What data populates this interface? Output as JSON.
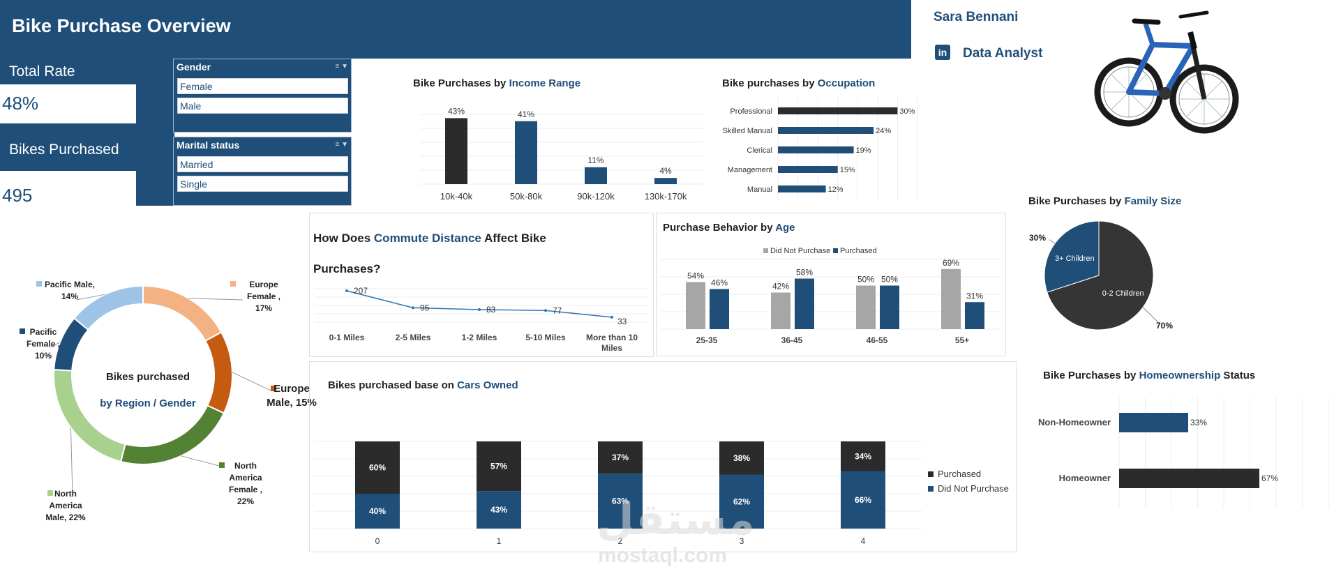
{
  "header": {
    "title": "Bike Purchase Overview"
  },
  "profile": {
    "name": "Sara Bennani",
    "role": "Data Analyst",
    "linkedin_glyph": "in"
  },
  "kpis": {
    "total_rate_label": "Total Rate",
    "total_rate_value": "48%",
    "bikes_label": "Bikes Purchased",
    "bikes_value": "495"
  },
  "slicers": {
    "gender": {
      "title": "Gender",
      "items": [
        "Female",
        "Male"
      ]
    },
    "marital": {
      "title": "Marital status",
      "items": [
        "Married",
        "Single"
      ]
    }
  },
  "watermark": {
    "arabic": "مستقل",
    "latin": "mostaql.com"
  },
  "charts": {
    "income": {
      "title_pre": "Bike Purchases by ",
      "title_hl": "Income Range"
    },
    "occupation": {
      "title_pre": "Bike purchases by ",
      "title_hl": "Occupation"
    },
    "family": {
      "title_pre": "Bike Purchases by ",
      "title_hl": "Family Size"
    },
    "region": {
      "center_line1": "Bikes purchased",
      "center_line2": "by Region / Gender"
    },
    "commute": {
      "title_pre": "How Does ",
      "title_hl": "Commute Distance",
      "title_post": " Affect Bike",
      "title_line2": "Purchases?"
    },
    "age": {
      "title_pre": "Purchase Behavior by ",
      "title_hl": "Age"
    },
    "cars": {
      "title_pre": "Bikes purchased base on ",
      "title_hl": "Cars Owned"
    },
    "home": {
      "title_pre": "Bike Purchases by ",
      "title_hl": "Homeownership",
      "title_post": " Status"
    }
  },
  "chart_data": [
    {
      "id": "income",
      "type": "bar",
      "title": "Bike Purchases by Income Range",
      "categories": [
        "10k-40k",
        "50k-80k",
        "90k-120k",
        "130k-170k"
      ],
      "values": [
        43,
        41,
        11,
        4
      ],
      "labels": [
        "43%",
        "41%",
        "11%",
        "4%"
      ],
      "colors": [
        "#2b2b2b",
        "#1f4e79",
        "#1f4e79",
        "#1f4e79"
      ],
      "ylim": [
        0,
        50
      ]
    },
    {
      "id": "occupation",
      "type": "bar",
      "orientation": "horizontal",
      "title": "Bike purchases by Occupation",
      "categories": [
        "Professional",
        "Skilled Manual",
        "Clerical",
        "Management",
        "Manual"
      ],
      "values": [
        30,
        24,
        19,
        15,
        12
      ],
      "labels": [
        "30%",
        "24%",
        "19%",
        "15%",
        "12%"
      ],
      "colors": [
        "#2b2b2b",
        "#1f4e79",
        "#1f4e79",
        "#1f4e79",
        "#1f4e79"
      ],
      "xlim": [
        0,
        35
      ]
    },
    {
      "id": "family",
      "type": "pie",
      "title": "Bike Purchases by Family Size",
      "slices": [
        {
          "name": "3+ Children",
          "value": 30,
          "label": "30%",
          "color": "#1f4e79"
        },
        {
          "name": "0-2 Children",
          "value": 70,
          "label": "70%",
          "color": "#353535"
        }
      ]
    },
    {
      "id": "region",
      "type": "pie",
      "donut": true,
      "title": "Bikes purchased by Region / Gender",
      "slices": [
        {
          "name": "Europe Female",
          "value": 17,
          "label_lines": [
            "Europe",
            "Female ,",
            "17%"
          ],
          "color": "#f4b183"
        },
        {
          "name": "Europe Male",
          "value": 15,
          "label_lines": [
            "Europe",
            "Male, 15%"
          ],
          "color": "#c55a11"
        },
        {
          "name": "North America Female",
          "value": 22,
          "label_lines": [
            "North",
            "America",
            "Female ,",
            "22%"
          ],
          "color": "#548235"
        },
        {
          "name": "North America Male",
          "value": 22,
          "label_lines": [
            "North",
            "America",
            "Male, 22%"
          ],
          "color": "#a9d18e"
        },
        {
          "name": "Pacific Female",
          "value": 10,
          "label_lines": [
            "Pacific",
            "Female ,",
            "10%"
          ],
          "color": "#1f4e79"
        },
        {
          "name": "Pacific Male",
          "value": 14,
          "label_lines": [
            "Pacific Male,",
            "14%"
          ],
          "color": "#9dc3e6"
        }
      ]
    },
    {
      "id": "commute",
      "type": "line",
      "title": "How Does Commute Distance Affect Bike Purchases?",
      "categories": [
        "0-1 Miles",
        "2-5 Miles",
        "1-2 Miles",
        "5-10 Miles",
        "More than 10 Miles"
      ],
      "category_lines": [
        [
          "0-1 Miles"
        ],
        [
          "2-5 Miles"
        ],
        [
          "1-2 Miles"
        ],
        [
          "5-10 Miles"
        ],
        [
          "More than 10",
          "Miles"
        ]
      ],
      "values": [
        207,
        95,
        83,
        77,
        33
      ],
      "ylim": [
        0,
        230
      ],
      "color": "#2e75b6"
    },
    {
      "id": "age",
      "type": "bar",
      "title": "Purchase Behavior by Age",
      "categories": [
        "25-35",
        "36-45",
        "46-55",
        "55+"
      ],
      "series": [
        {
          "name": "Did Not Purchase",
          "values": [
            54,
            42,
            50,
            69
          ],
          "labels": [
            "54%",
            "42%",
            "50%",
            "69%"
          ],
          "color": "#a6a6a6"
        },
        {
          "name": "Purchased",
          "values": [
            46,
            58,
            50,
            31
          ],
          "labels": [
            "46%",
            "58%",
            "50%",
            "31%"
          ],
          "color": "#1f4e79"
        }
      ],
      "ylim": [
        0,
        80
      ],
      "legend": "top"
    },
    {
      "id": "cars",
      "type": "bar",
      "stacked": true,
      "title": "Bikes purchased base on Cars Owned",
      "categories": [
        "0",
        "1",
        "2",
        "3",
        "4"
      ],
      "series": [
        {
          "name": "Did Not Purchase",
          "values": [
            40,
            43,
            63,
            62,
            66
          ],
          "labels": [
            "40%",
            "43%",
            "63%",
            "62%",
            "66%"
          ],
          "color": "#1f4e79"
        },
        {
          "name": "Purchased",
          "values": [
            60,
            57,
            37,
            38,
            34
          ],
          "labels": [
            "60%",
            "57%",
            "37%",
            "38%",
            "34%"
          ],
          "color": "#2b2b2b"
        }
      ],
      "ylim": [
        0,
        100
      ],
      "legend": "right",
      "legend_order": [
        "Purchased",
        "Did Not Purchase"
      ]
    },
    {
      "id": "home",
      "type": "bar",
      "orientation": "horizontal",
      "title": "Bike Purchases by Homeownership Status",
      "categories": [
        "Non-Homeowner",
        "Homeowner"
      ],
      "values": [
        33,
        67
      ],
      "labels": [
        "33%",
        "67%"
      ],
      "colors": [
        "#1f4e79",
        "#2b2b2b"
      ],
      "xlim": [
        0,
        100
      ]
    }
  ]
}
